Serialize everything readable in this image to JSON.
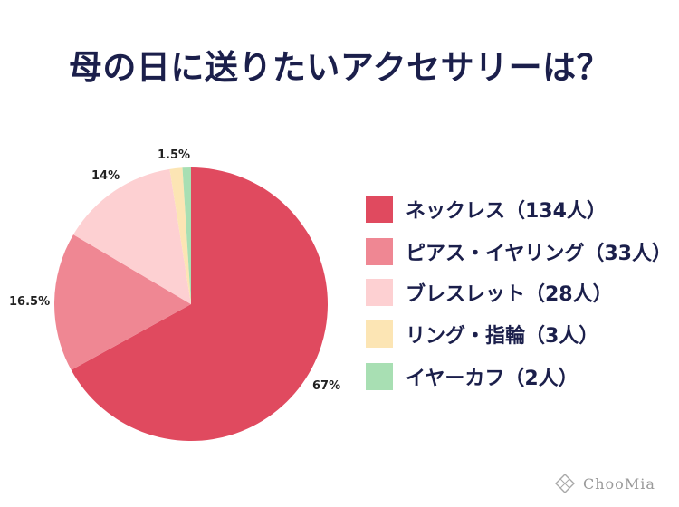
{
  "title": "母の日に送りたいアクセサリーは？",
  "chart_data": {
    "type": "pie",
    "title": "母の日に送りたいアクセサリーは？",
    "slices": [
      {
        "name": "ネックレス（134人）",
        "percent_label": "67%",
        "value": 67,
        "color": "#e04a5f"
      },
      {
        "name": "ピアス・イヤリング（33人）",
        "percent_label": "16.5%",
        "value": 16.5,
        "color": "#ef8793"
      },
      {
        "name": "ブレスレット（28人）",
        "percent_label": "14%",
        "value": 14,
        "color": "#fdd0d2"
      },
      {
        "name": "リング・指輪（3人）",
        "percent_label": "1.5%",
        "value": 1.5,
        "color": "#fce5b4"
      },
      {
        "name": "イヤーカフ（2人）",
        "percent_label": "",
        "value": 1,
        "color": "#a8dfb3"
      }
    ],
    "legend_position": "right"
  },
  "brand": {
    "name": "ChooMia"
  }
}
